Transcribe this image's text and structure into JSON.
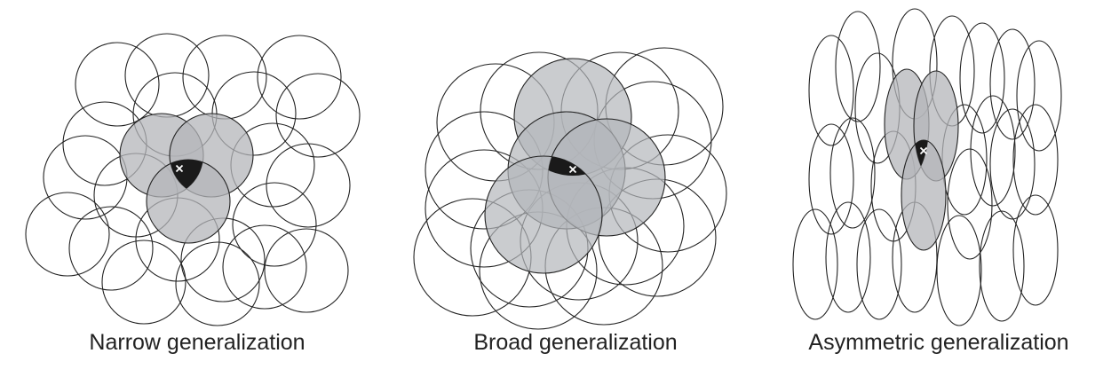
{
  "panels": [
    {
      "id": "narrow",
      "caption": "Narrow generalization"
    },
    {
      "id": "broad",
      "caption": "Broad generalization"
    },
    {
      "id": "asymmetric",
      "caption": "Asymmetric generalization"
    }
  ],
  "query_marker": "×",
  "colors": {
    "outline": "#222222",
    "receptive_field_fill": "#b4b6ba",
    "intersection": "#1a1a1a",
    "marker": "#ffffff"
  },
  "icons": [
    "query-point-marker"
  ]
}
